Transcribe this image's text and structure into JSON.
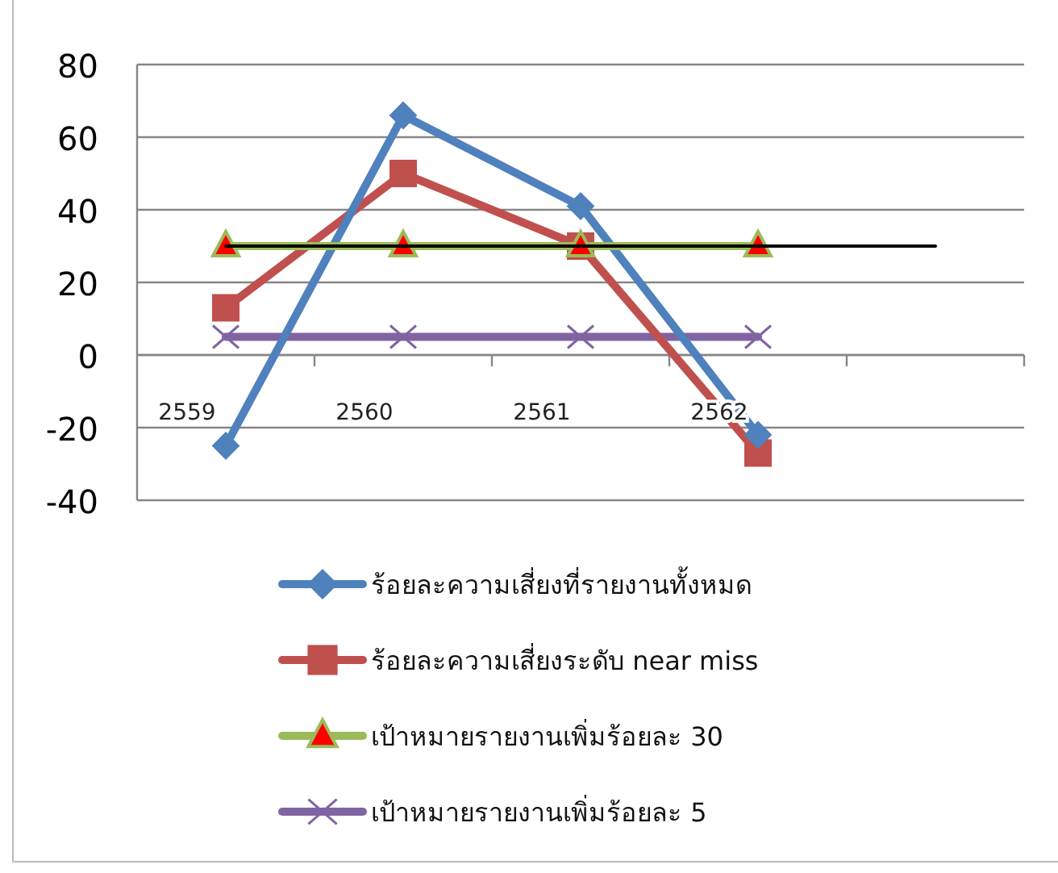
{
  "chart_data": {
    "type": "line",
    "categories": [
      "2559",
      "2560",
      "2561",
      "2562",
      null
    ],
    "ylim": [
      -40,
      80
    ],
    "yticks": [
      -40,
      -20,
      0,
      20,
      40,
      60,
      80
    ],
    "grid": "y",
    "legend": "bottom",
    "series": [
      {
        "name": "ร้อยละความเสี่ยงที่รายงานทั้งหมด",
        "color": "#4f81bd",
        "marker": "diamond",
        "values": [
          -25,
          66,
          41,
          -22,
          null
        ]
      },
      {
        "name": "ร้อยละความเสี่ยงระดับ near miss",
        "color": "#c0504d",
        "marker": "square",
        "values": [
          13,
          50,
          30,
          -27,
          null
        ]
      },
      {
        "name": "เป้าหมายรายงานเพิ่มร้อยละ 30",
        "color": "#9bbb59",
        "marker": "triangle",
        "values": [
          30,
          30,
          30,
          30,
          null
        ]
      },
      {
        "name": "เป้าหมายรายงานเพิ่มร้อยละ 5",
        "color": "#8064a2",
        "marker": "cross",
        "values": [
          5,
          5,
          5,
          5,
          null
        ]
      },
      {
        "color": "#000000",
        "marker": "none",
        "values": [
          30,
          30,
          30,
          30,
          30
        ]
      }
    ]
  }
}
